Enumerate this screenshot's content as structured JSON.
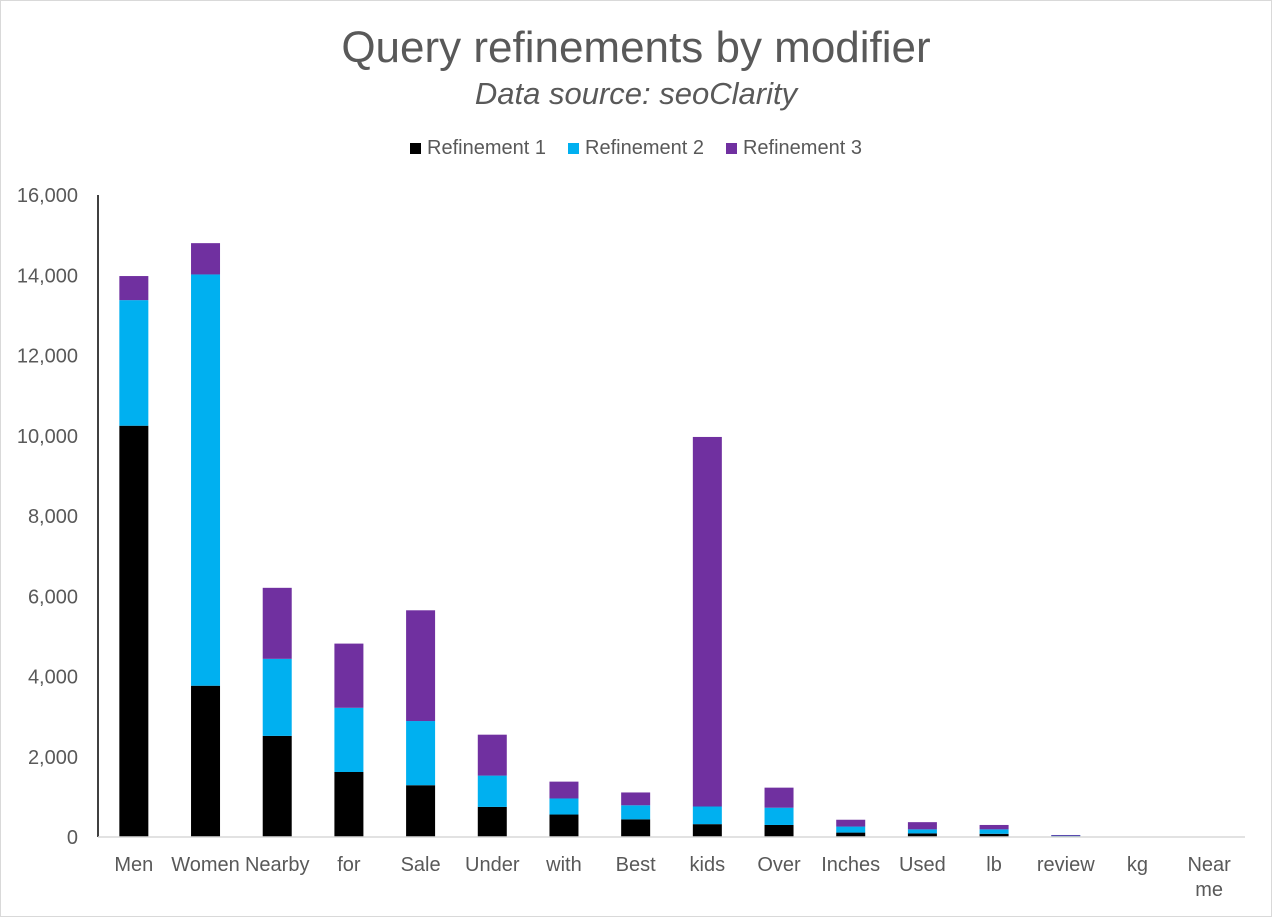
{
  "chart_data": {
    "type": "bar",
    "stacked": true,
    "title": "Query refinements by modifier",
    "subtitle": "Data source: seoClarity",
    "xlabel": "",
    "ylabel": "",
    "ylim": [
      0,
      16000
    ],
    "yticks": [
      "0",
      "2,000",
      "4,000",
      "6,000",
      "8,000",
      "10,000",
      "12,000",
      "14,000",
      "16,000"
    ],
    "ytick_values": [
      0,
      2000,
      4000,
      6000,
      8000,
      10000,
      12000,
      14000,
      16000
    ],
    "grid": false,
    "legend_position": "top",
    "categories": [
      "Men",
      "Women",
      "Nearby",
      "for",
      "Sale",
      "Under",
      "with",
      "Best",
      "kids",
      "Over",
      "Inches",
      "Used",
      "lb",
      "review",
      "kg",
      "Near me"
    ],
    "series": [
      {
        "name": "Refinement 1",
        "color": "#000000",
        "values": [
          10250,
          3770,
          2520,
          1620,
          1290,
          750,
          560,
          440,
          320,
          300,
          110,
          90,
          80,
          20,
          0,
          0
        ]
      },
      {
        "name": "Refinement 2",
        "color": "#00b0f0",
        "values": [
          3130,
          10250,
          1920,
          1600,
          1600,
          780,
          400,
          350,
          440,
          430,
          150,
          100,
          110,
          20,
          0,
          0
        ]
      },
      {
        "name": "Refinement 3",
        "color": "#7030a0",
        "values": [
          600,
          780,
          1770,
          1600,
          2760,
          1020,
          420,
          320,
          9210,
          500,
          170,
          180,
          110,
          10,
          0,
          0
        ]
      }
    ]
  }
}
